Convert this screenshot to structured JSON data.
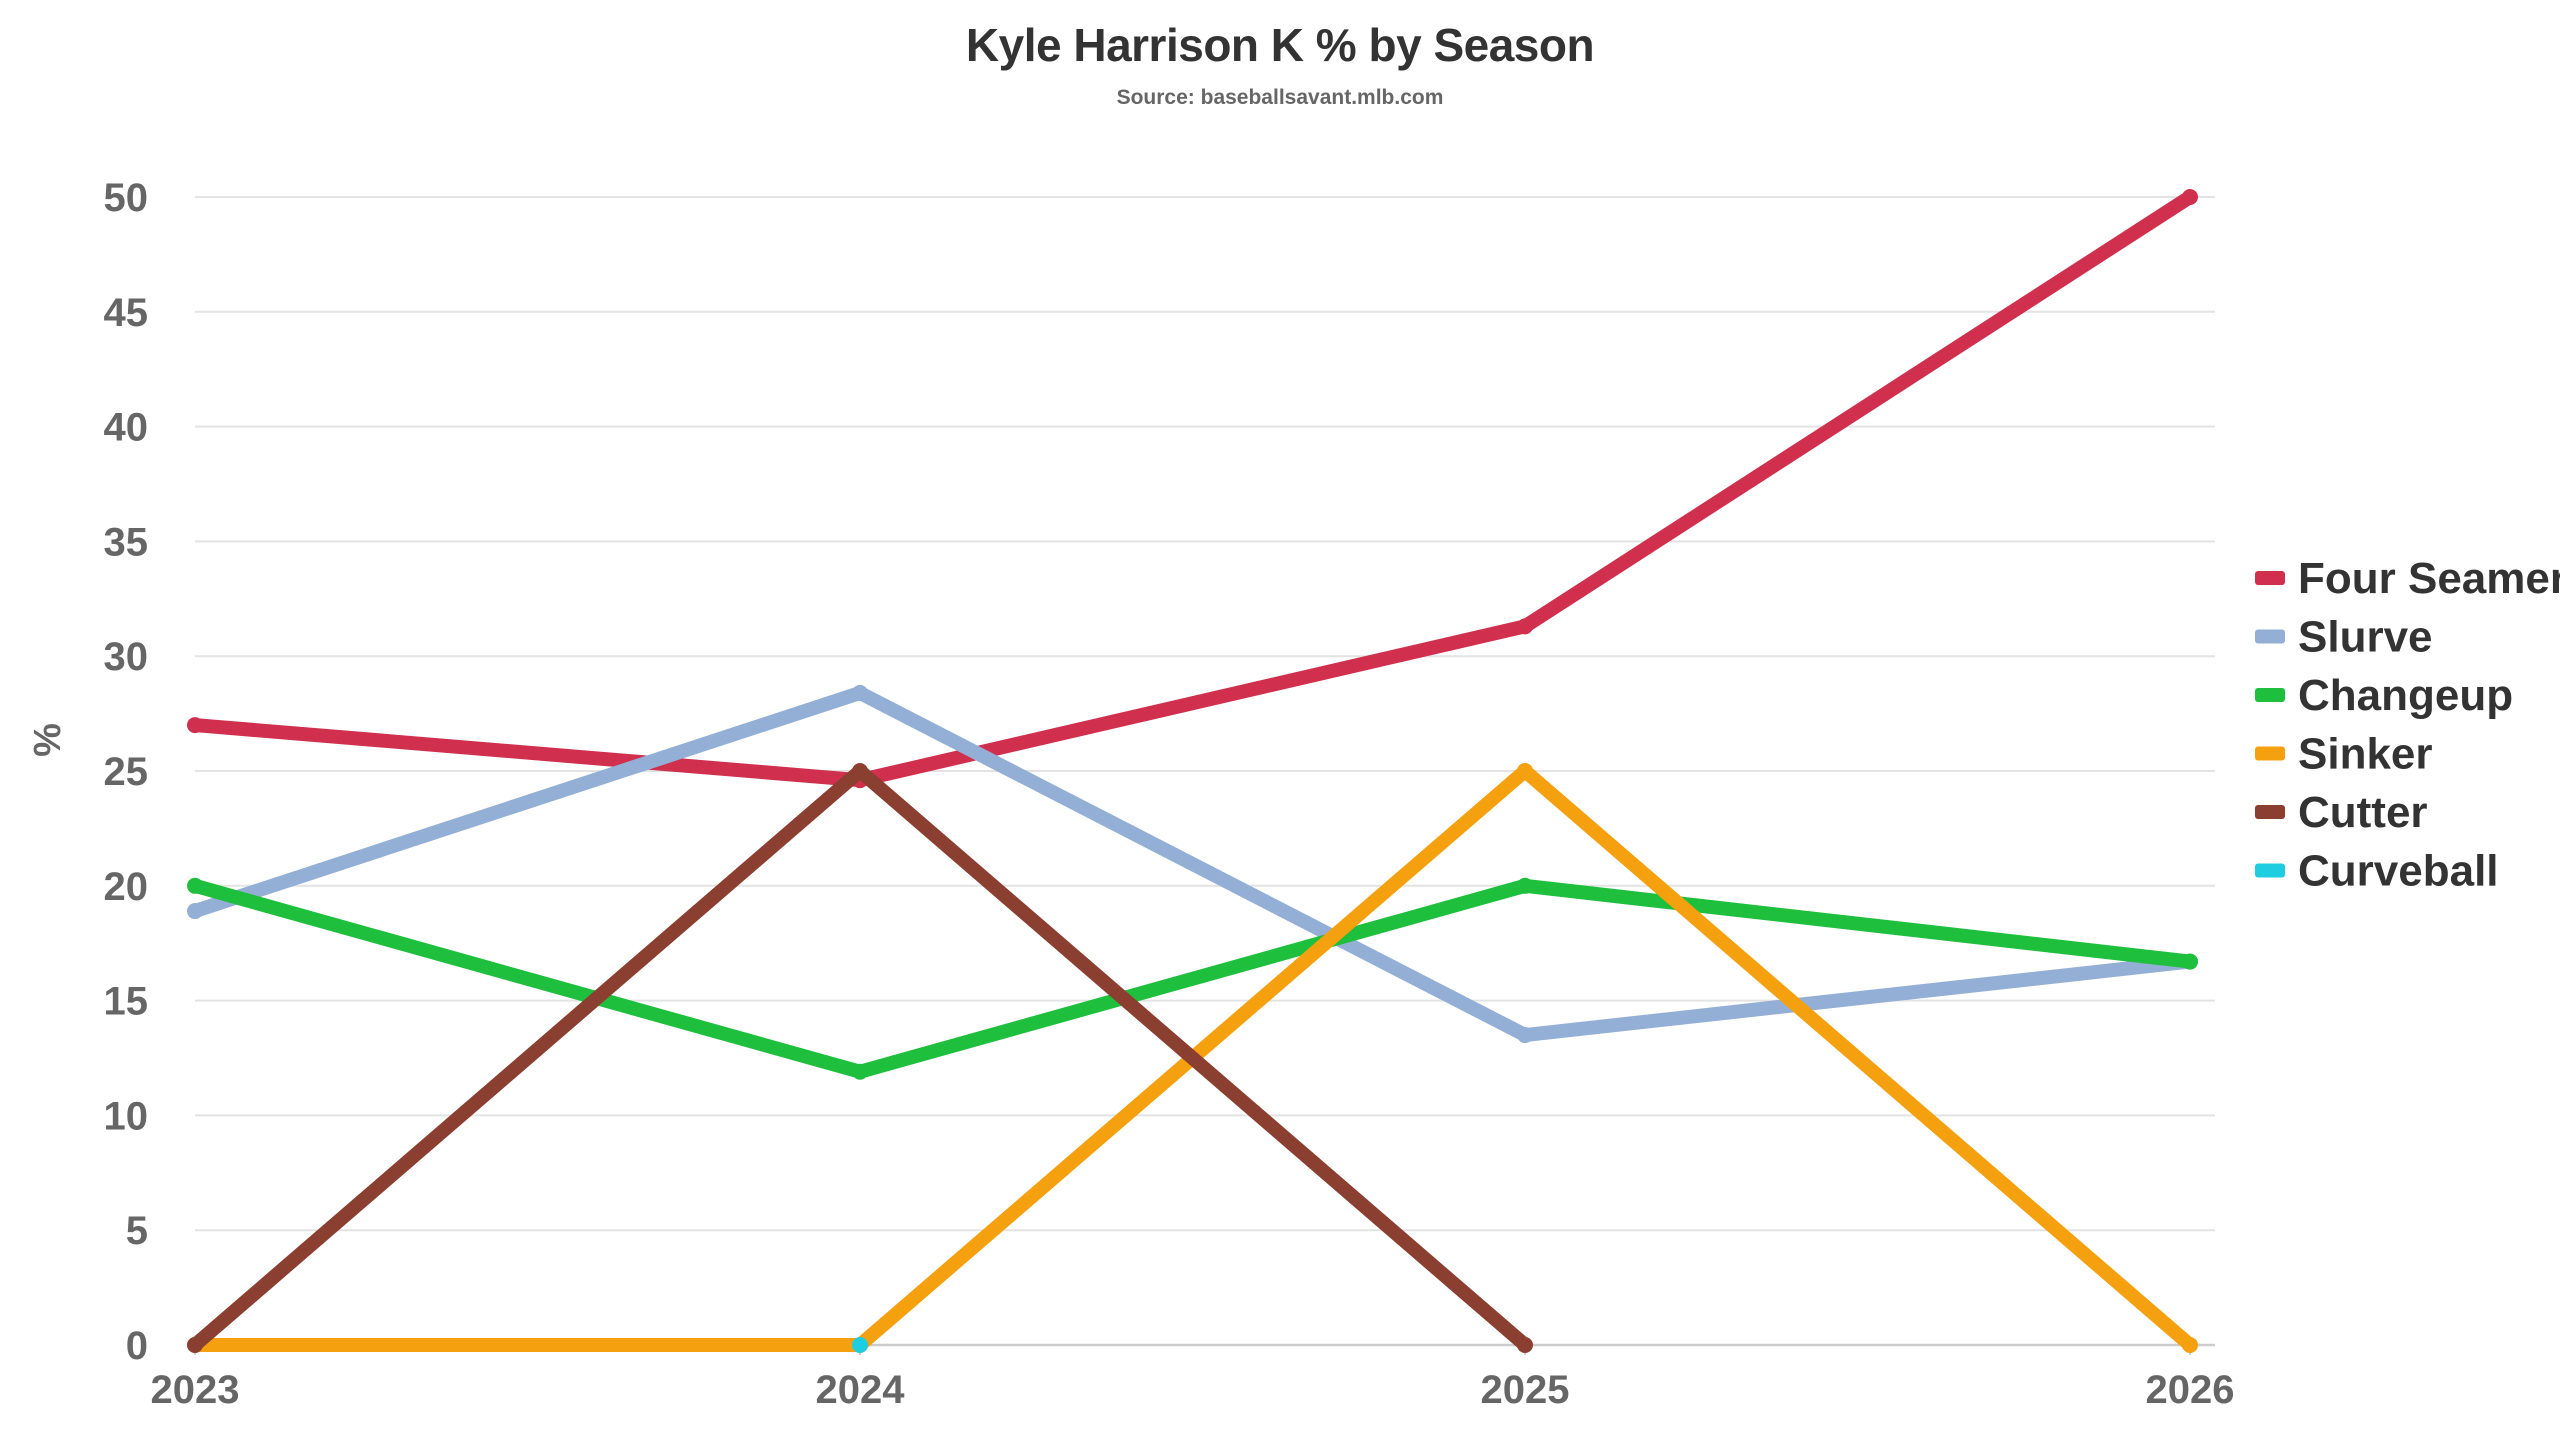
{
  "chart_data": {
    "type": "line",
    "title": "Kyle Harrison K % by Season",
    "subtitle": "Source: baseballsavant.mlb.com",
    "xlabel": "",
    "ylabel": "%",
    "categories": [
      "2023",
      "2024",
      "2025",
      "2026"
    ],
    "ylim": [
      0,
      50
    ],
    "yticks": [
      0,
      5,
      10,
      15,
      20,
      25,
      30,
      35,
      40,
      45,
      50
    ],
    "grid": true,
    "legend_position": "right",
    "series": [
      {
        "name": "Four Seamer",
        "color": "#d0304e",
        "values": [
          27.0,
          24.6,
          31.3,
          50.0
        ]
      },
      {
        "name": "Slurve",
        "color": "#93afd6",
        "values": [
          18.9,
          28.4,
          13.5,
          16.7
        ]
      },
      {
        "name": "Changeup",
        "color": "#1fbf3e",
        "values": [
          20.0,
          11.9,
          20.0,
          16.7
        ]
      },
      {
        "name": "Sinker",
        "color": "#f5a00e",
        "values": [
          0,
          0,
          25.0,
          0
        ]
      },
      {
        "name": "Cutter",
        "color": "#8b3f30",
        "values": [
          0,
          25.0,
          0,
          null
        ]
      },
      {
        "name": "Curveball",
        "color": "#1ecde0",
        "values": [
          null,
          0,
          null,
          null
        ]
      }
    ]
  }
}
